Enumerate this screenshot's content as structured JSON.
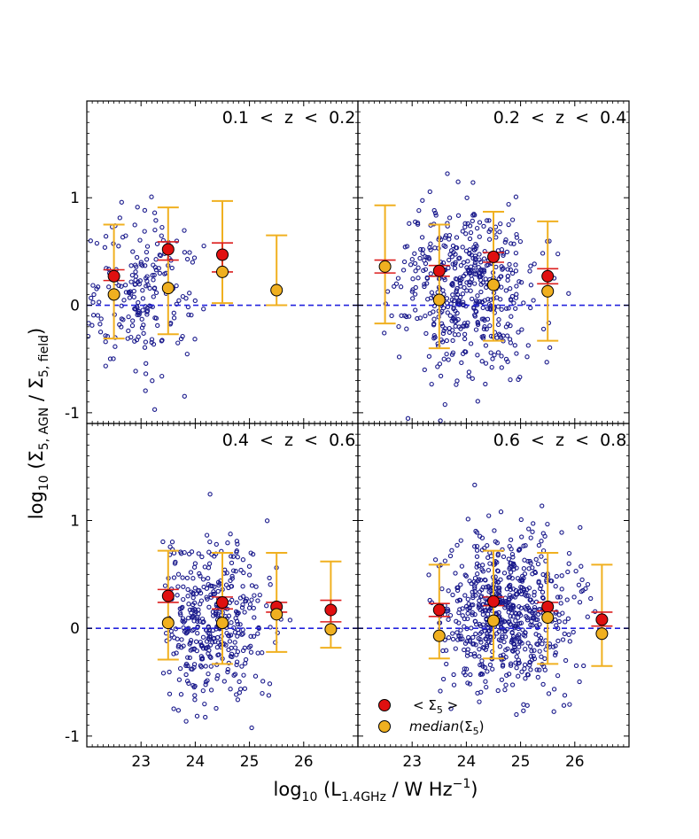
{
  "colors": {
    "scatter": "#1a1a8c",
    "mean_fill": "#e01010",
    "mean_bar": "#dc1e1e",
    "median_fill": "#f0b020",
    "median_bar": "#f0b020",
    "zero_line": "#2222dd"
  },
  "axes": {
    "xlabel": "log₁₀ (L1.4GHz / W Hz⁻¹)",
    "xlabel_main": "log",
    "xlabel_sub": "10",
    "xlabel_rest": " (L",
    "xlabel_sub2": "1.4GHz",
    "xlabel_rest2": " / W Hz",
    "xlabel_sup": "−1",
    "xlabel_end": ")",
    "ylabel_main": "log",
    "ylabel_sub": "10",
    "ylabel_rest": " (Σ",
    "ylabel_sub2": "5, AGN",
    "ylabel_rest2": " / Σ",
    "ylabel_sub3": "5, field",
    "ylabel_end": ")",
    "xticks": [
      "23",
      "24",
      "25",
      "26"
    ],
    "yticks": [
      "1",
      "0",
      "-1"
    ]
  },
  "legend": {
    "mean_label": "< Σ5 >",
    "mean_pre": "< Σ",
    "mean_sub": "5",
    "mean_post": " >",
    "median_label": "median(Σ5)",
    "median_pre": "median",
    "median_mid": "(Σ",
    "median_sub": "5",
    "median_post": ")"
  },
  "chart_data": [
    {
      "type": "scatter",
      "title": "0.1  <  z  <  0.2",
      "xlim": [
        22.0,
        27.0
      ],
      "ylim": [
        -1.1,
        1.9
      ],
      "scatter": {
        "center_x": 23.0,
        "spread_x": 0.55,
        "center_y": 0.1,
        "spread_y": 0.35,
        "count": 210,
        "xmin": 22.0,
        "xmax": 24.9
      },
      "x": [
        22.5,
        23.5,
        24.5,
        25.5
      ],
      "mean": [
        0.27,
        0.52,
        0.47,
        null
      ],
      "mean_err": [
        [
          0.23,
          0.33
        ],
        [
          0.42,
          0.59
        ],
        [
          0.31,
          0.58
        ],
        null
      ],
      "median": [
        0.1,
        0.16,
        0.31,
        0.14
      ],
      "median_err": [
        [
          -0.31,
          0.75
        ],
        [
          -0.27,
          0.91
        ],
        [
          0.02,
          0.97
        ],
        [
          0.0,
          0.65
        ]
      ]
    },
    {
      "type": "scatter",
      "title": "0.2  <  z  <  0.4",
      "xlim": [
        22.0,
        27.0
      ],
      "ylim": [
        -1.1,
        1.9
      ],
      "scatter": {
        "center_x": 24.0,
        "spread_x": 0.6,
        "center_y": 0.15,
        "spread_y": 0.4,
        "count": 520,
        "xmin": 22.3,
        "xmax": 26.0
      },
      "x": [
        22.5,
        23.5,
        24.5,
        25.5
      ],
      "mean": [
        null,
        0.32,
        0.45,
        0.27
      ],
      "mean_err": [
        [
          0.3,
          0.42
        ],
        [
          0.27,
          0.37
        ],
        [
          0.4,
          0.49
        ],
        [
          0.2,
          0.34
        ]
      ],
      "median": [
        0.36,
        0.05,
        0.19,
        0.13
      ],
      "median_err": [
        [
          -0.17,
          0.93
        ],
        [
          -0.4,
          0.75
        ],
        [
          -0.33,
          0.87
        ],
        [
          -0.33,
          0.78
        ]
      ]
    },
    {
      "type": "scatter",
      "title": "0.4  <  z  <  0.6",
      "xlim": [
        22.0,
        27.0
      ],
      "ylim": [
        -1.1,
        1.9
      ],
      "scatter": {
        "center_x": 24.3,
        "spread_x": 0.55,
        "center_y": 0.05,
        "spread_y": 0.37,
        "count": 420,
        "xmin": 23.4,
        "xmax": 26.3
      },
      "x": [
        23.5,
        24.5,
        25.5,
        26.5
      ],
      "mean": [
        0.3,
        0.24,
        0.2,
        0.17
      ],
      "mean_err": [
        [
          0.24,
          0.36
        ],
        [
          0.18,
          0.29
        ],
        [
          0.15,
          0.24
        ],
        [
          0.06,
          0.26
        ]
      ],
      "median": [
        0.05,
        0.05,
        0.13,
        -0.01
      ],
      "median_err": [
        [
          -0.29,
          0.72
        ],
        [
          -0.33,
          0.7
        ],
        [
          -0.22,
          0.7
        ],
        [
          -0.18,
          0.62
        ]
      ]
    },
    {
      "type": "scatter",
      "title": "0.6  <  z  <  0.8",
      "xlim": [
        22.0,
        27.0
      ],
      "ylim": [
        -1.1,
        1.9
      ],
      "scatter": {
        "center_x": 24.7,
        "spread_x": 0.6,
        "center_y": 0.12,
        "spread_y": 0.38,
        "count": 680,
        "xmin": 23.3,
        "xmax": 26.9
      },
      "x": [
        23.5,
        24.5,
        25.5,
        26.5
      ],
      "mean": [
        0.17,
        0.25,
        0.2,
        0.08
      ],
      "mean_err": [
        [
          0.11,
          0.23
        ],
        [
          0.21,
          0.29
        ],
        [
          0.16,
          0.24
        ],
        [
          0.02,
          0.15
        ]
      ],
      "median": [
        -0.07,
        0.07,
        0.1,
        -0.05
      ],
      "median_err": [
        [
          -0.28,
          0.59
        ],
        [
          -0.28,
          0.72
        ],
        [
          -0.33,
          0.7
        ],
        [
          -0.35,
          0.59
        ]
      ]
    }
  ]
}
